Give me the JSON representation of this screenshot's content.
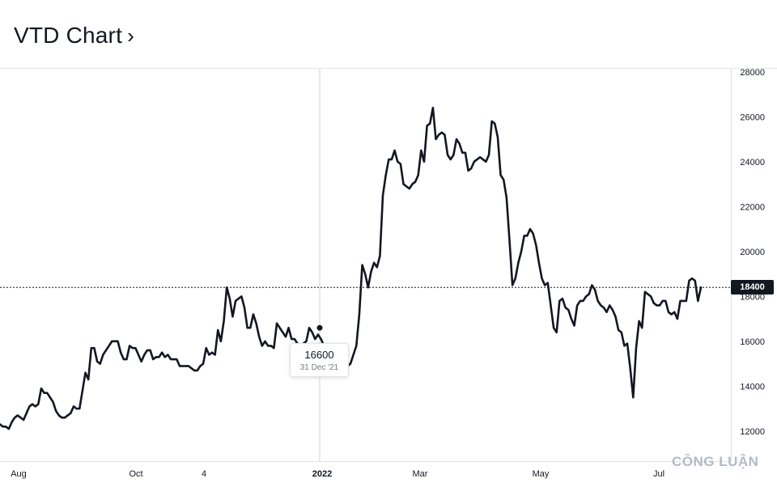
{
  "header": {
    "title": "VTD Chart",
    "chevron": "›"
  },
  "tooltip": {
    "value": "16600",
    "date": "31 Dec '21"
  },
  "last_price_label": "18400",
  "watermark": "CÔNG LUẬN",
  "chart_data": {
    "type": "line",
    "title": "VTD Chart",
    "xlabel": "",
    "ylabel": "",
    "ylim": [
      11300,
      28300
    ],
    "y_ticks": [
      28000,
      26000,
      24000,
      22000,
      20000,
      18000,
      16000,
      14000,
      12000
    ],
    "x_tick_labels": [
      "Aug",
      "Oct",
      "4",
      "2022",
      "Mar",
      "May",
      "Jul"
    ],
    "grid": false,
    "series_color": "#131722",
    "last_value": 18400,
    "hover_point": {
      "date": "2021-12-31",
      "value": 16600
    },
    "series": [
      {
        "values": [
          12300,
          12200,
          12200,
          12100,
          12400,
          12600,
          12700,
          12600,
          12500,
          12800,
          13100,
          13200,
          13100,
          13200,
          13900,
          13700,
          13700,
          13500,
          13300,
          12900,
          12700,
          12600,
          12600,
          12700,
          12800,
          13100,
          13000,
          13000,
          13800,
          14600,
          14300,
          15700,
          15700,
          15100,
          15000,
          15400,
          15600,
          15800,
          16000,
          16000,
          16000,
          15500,
          15200,
          15200,
          15800,
          15700,
          15700,
          15400,
          15100,
          15400,
          15600,
          15600,
          15200,
          15300,
          15300,
          15500,
          15300,
          15400,
          15200,
          15200,
          15200,
          14900,
          14900,
          14900,
          14900,
          14800,
          14700,
          14700,
          14900,
          15000,
          15700,
          15400,
          15500,
          15400,
          16500,
          16000,
          16900,
          18400,
          17900,
          17100,
          17800,
          17900,
          18000,
          17500,
          16600,
          16600,
          17200,
          16800,
          16200,
          15800,
          16000,
          15800,
          15800,
          15700,
          16800,
          16600,
          16400,
          16200,
          16600,
          16100,
          16100,
          15900,
          15600,
          15900,
          16000,
          16600,
          16400,
          16100,
          16300,
          16100,
          15800,
          15600,
          15300,
          15100,
          15500,
          15400,
          15200,
          14900,
          14900,
          15000,
          15400,
          15800,
          17200,
          19400,
          19000,
          18400,
          19100,
          19500,
          19300,
          19800,
          22500,
          23400,
          24100,
          24100,
          24500,
          24000,
          23900,
          23000,
          22900,
          22800,
          23000,
          23100,
          23400,
          24500,
          24000,
          25600,
          25700,
          26400,
          25000,
          25200,
          25300,
          25200,
          24300,
          24100,
          24300,
          25000,
          24800,
          24400,
          24400,
          23600,
          23700,
          24000,
          24100,
          24200,
          24100,
          24000,
          24300,
          25800,
          25700,
          25100,
          23400,
          23200,
          22400,
          20500,
          18500,
          18800,
          19500,
          20000,
          20700,
          20700,
          21000,
          20800,
          20300,
          19500,
          18800,
          18500,
          18600,
          17600,
          16600,
          16400,
          17800,
          17900,
          17500,
          17400,
          17000,
          16700,
          17600,
          17800,
          17800,
          18000,
          18100,
          18500,
          18300,
          17800,
          17600,
          17500,
          17300,
          17600,
          17400,
          17100,
          16500,
          16400,
          15800,
          15900,
          14800,
          13500,
          15700,
          16900,
          16600,
          18200,
          18100,
          18000,
          17700,
          17600,
          17600,
          17800,
          17800,
          17300,
          17200,
          17300,
          17000,
          17800,
          17800,
          17800,
          18700,
          18800,
          18700,
          17800,
          18400
        ]
      }
    ]
  }
}
